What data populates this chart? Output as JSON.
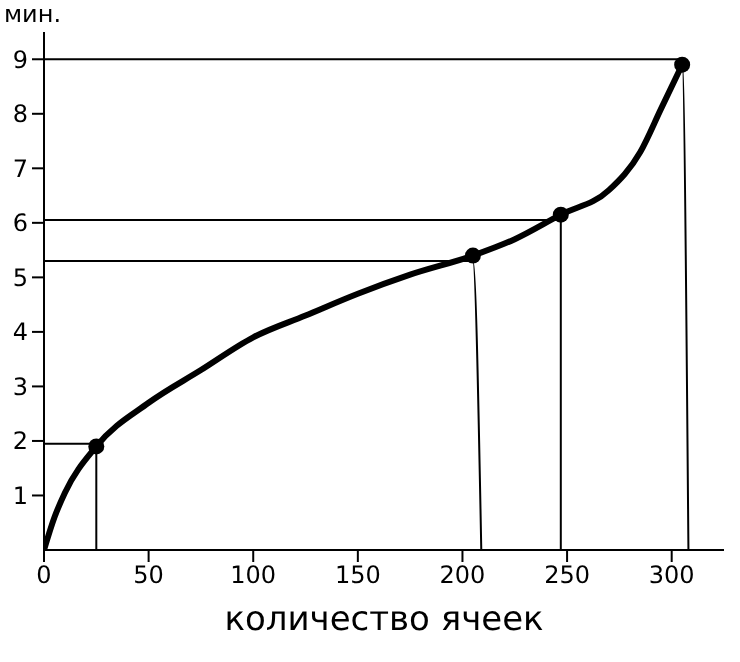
{
  "chart_data": {
    "type": "line",
    "ylabel": "мин.",
    "xlabel": "количество ячеек",
    "xlim": [
      0,
      325
    ],
    "ylim": [
      0,
      9.5
    ],
    "xticks": [
      0,
      50,
      100,
      150,
      200,
      250,
      300
    ],
    "yticks": [
      1,
      2,
      3,
      4,
      5,
      6,
      7,
      8,
      9
    ],
    "grid": false,
    "series": [
      {
        "color": "#000000",
        "x": [
          0,
          5,
          10,
          25,
          50,
          75,
          100,
          125,
          150,
          175,
          205,
          225,
          247,
          270,
          285,
          295,
          305
        ],
        "values": [
          0,
          0.6,
          1.05,
          1.9,
          2.7,
          3.3,
          3.9,
          4.3,
          4.7,
          5.05,
          5.4,
          5.7,
          6.15,
          6.6,
          7.3,
          8.1,
          8.9
        ]
      },
      {
        "color": "#000000",
        "x": [
          0,
          25,
          25
        ],
        "values": [
          1.95,
          1.95,
          0
        ]
      },
      {
        "color": "#000000",
        "x": [
          0,
          205,
          209
        ],
        "values": [
          5.3,
          5.3,
          0
        ]
      },
      {
        "color": "#000000",
        "x": [
          0,
          247,
          247
        ],
        "values": [
          6.05,
          6.05,
          0
        ]
      },
      {
        "color": "#000000",
        "x": [
          0,
          305,
          308
        ],
        "values": [
          9,
          9,
          0
        ]
      },
      {
        "type": "scatter",
        "color": "#000000",
        "x": [
          25,
          205,
          247,
          305
        ],
        "values": [
          1.9,
          5.4,
          6.15,
          8.9
        ]
      }
    ]
  }
}
